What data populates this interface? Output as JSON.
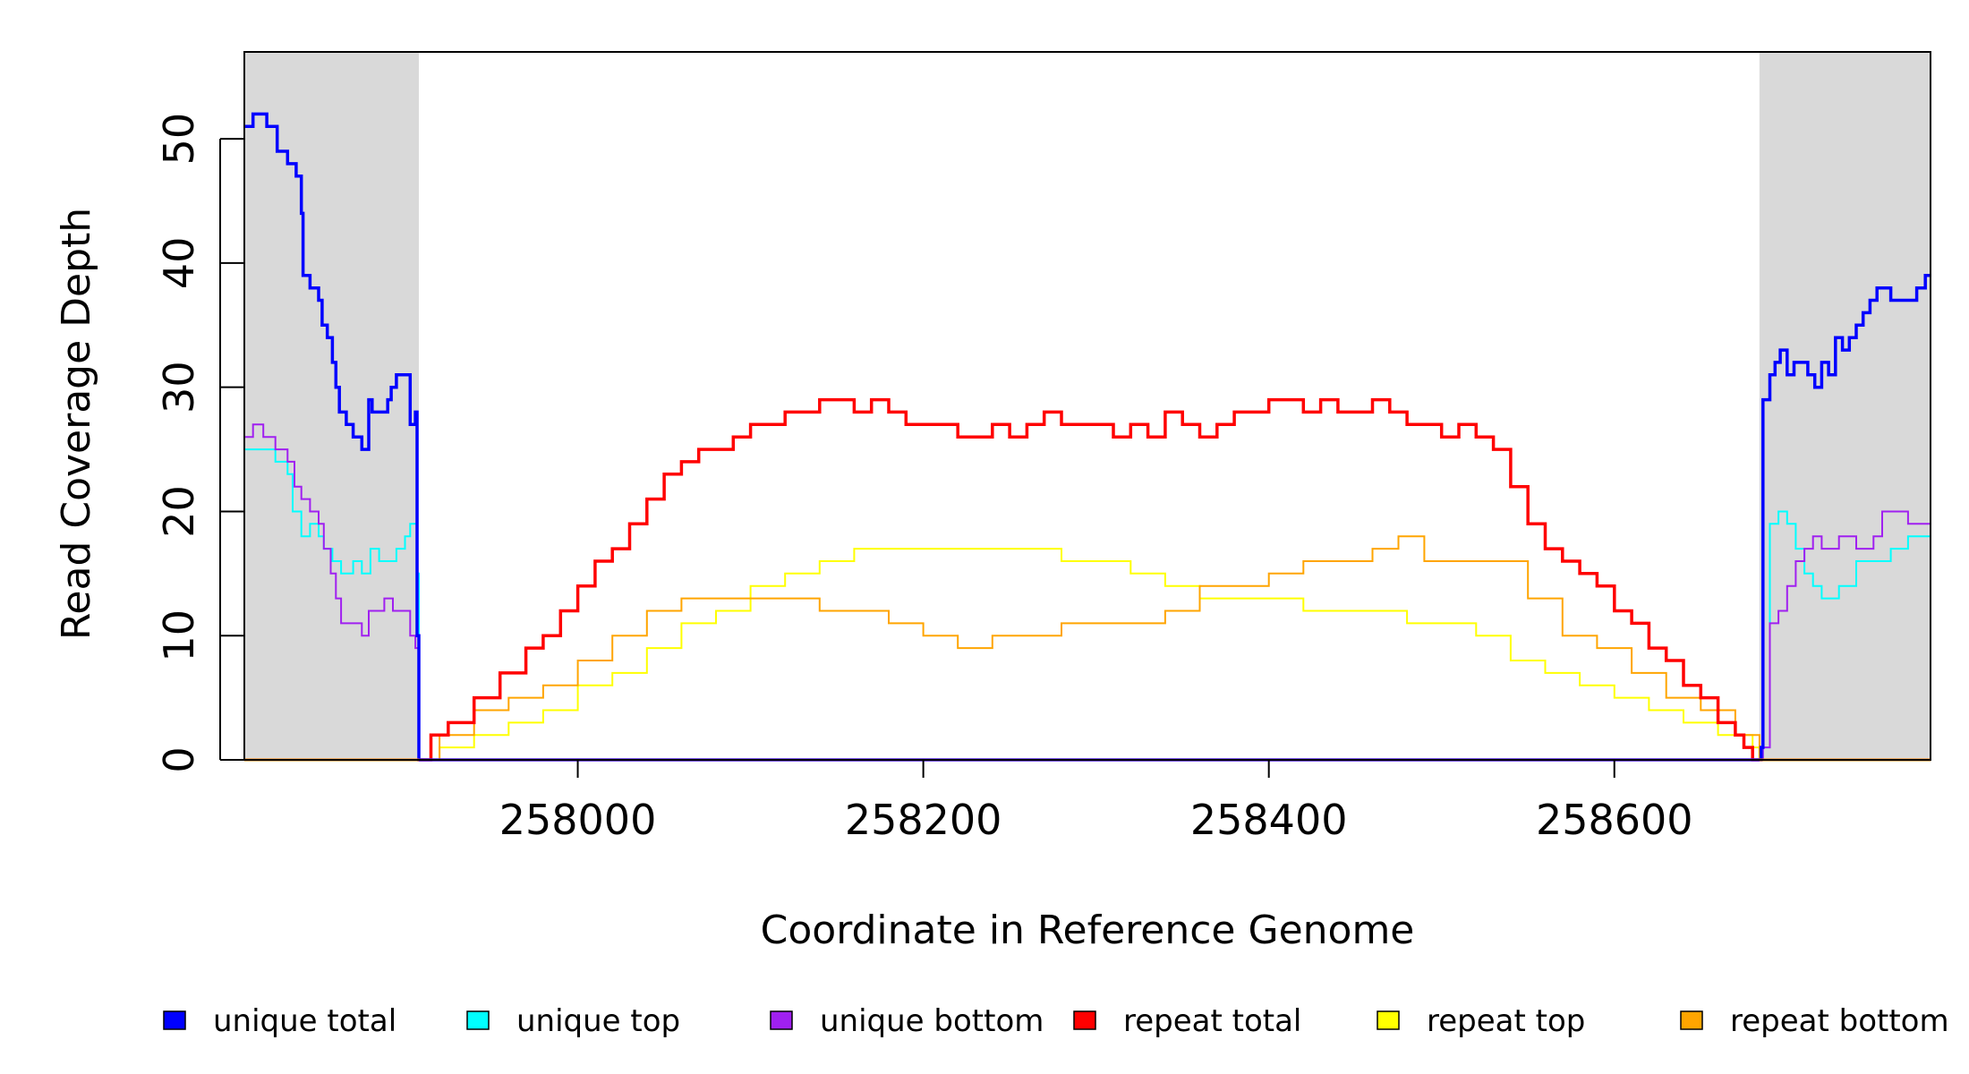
{
  "chart_data": {
    "type": "line",
    "title": "",
    "xlabel": "Coordinate in Reference Genome",
    "ylabel": "Read Coverage Depth",
    "xlim": [
      257807,
      258783
    ],
    "ylim": [
      0,
      57
    ],
    "x_ticks": [
      258000,
      258200,
      258400,
      258600
    ],
    "y_ticks": [
      0,
      10,
      20,
      30,
      40,
      50
    ],
    "shaded_regions": [
      {
        "from": 257807,
        "to": 257908,
        "color": "#d9d9d9"
      },
      {
        "from": 258684,
        "to": 258783,
        "color": "#d9d9d9"
      }
    ],
    "grid": false,
    "legend_position": "bottom",
    "series": [
      {
        "name": "unique total",
        "color": "#0000ff",
        "x": [
          257807,
          257812,
          257820,
          257826,
          257832,
          257837,
          257840,
          257841,
          257845,
          257848,
          257850,
          257852,
          257855,
          257858,
          257860,
          257862,
          257866,
          257870,
          257875,
          257879,
          257881,
          257885,
          257890,
          257892,
          257895,
          257900,
          257903,
          257906,
          257907,
          257908,
          257909,
          258684,
          258685,
          258686,
          258690,
          258693,
          258696,
          258700,
          258704,
          258708,
          258712,
          258716,
          258720,
          258724,
          258728,
          258732,
          258736,
          258740,
          258744,
          258748,
          258752,
          258756,
          258760,
          258765,
          258770,
          258775,
          258780,
          258783
        ],
        "values": [
          51,
          52,
          51,
          49,
          48,
          47,
          44,
          39,
          38,
          38,
          37,
          35,
          34,
          32,
          30,
          28,
          27,
          26,
          25,
          29,
          28,
          28,
          29,
          30,
          31,
          31,
          27,
          28,
          10,
          0,
          0,
          0,
          1,
          29,
          31,
          32,
          33,
          31,
          32,
          32,
          31,
          30,
          32,
          31,
          34,
          33,
          34,
          35,
          36,
          37,
          38,
          38,
          37,
          37,
          37,
          38,
          39,
          39
        ]
      },
      {
        "name": "unique top",
        "color": "#00ffff",
        "x": [
          257807,
          257815,
          257825,
          257832,
          257835,
          257840,
          257845,
          257850,
          257853,
          257858,
          257863,
          257866,
          257870,
          257875,
          257880,
          257885,
          257890,
          257895,
          257900,
          257903,
          257906,
          257907,
          257908,
          258684,
          258686,
          258690,
          258695,
          258700,
          258705,
          258710,
          258715,
          258720,
          258730,
          258740,
          258750,
          258760,
          258770,
          258783
        ],
        "values": [
          25,
          25,
          24,
          23,
          20,
          18,
          19,
          18,
          17,
          16,
          15,
          15,
          16,
          15,
          17,
          16,
          16,
          17,
          18,
          19,
          19,
          15,
          0,
          0,
          1,
          19,
          20,
          19,
          17,
          15,
          14,
          13,
          14,
          16,
          16,
          17,
          18,
          19
        ]
      },
      {
        "name": "unique bottom",
        "color": "#a020f0",
        "x": [
          257807,
          257812,
          257818,
          257825,
          257832,
          257836,
          257840,
          257845,
          257850,
          257853,
          257857,
          257860,
          257863,
          257866,
          257870,
          257875,
          257879,
          257882,
          257888,
          257893,
          257898,
          257903,
          257906,
          257907,
          257908,
          258684,
          258686,
          258690,
          258695,
          258700,
          258705,
          258710,
          258715,
          258720,
          258730,
          258740,
          258750,
          258755,
          258760,
          258770,
          258783
        ],
        "values": [
          26,
          27,
          26,
          25,
          24,
          22,
          21,
          20,
          19,
          17,
          15,
          13,
          11,
          11,
          11,
          10,
          12,
          12,
          13,
          12,
          12,
          10,
          9,
          9,
          0,
          0,
          1,
          11,
          12,
          14,
          16,
          17,
          18,
          17,
          18,
          17,
          18,
          20,
          20,
          19,
          20
        ]
      },
      {
        "name": "repeat total",
        "color": "#ff0000",
        "x": [
          257908,
          257915,
          257925,
          257940,
          257955,
          257970,
          257980,
          257990,
          258000,
          258010,
          258020,
          258030,
          258040,
          258050,
          258060,
          258070,
          258080,
          258090,
          258100,
          258110,
          258120,
          258130,
          258140,
          258150,
          258160,
          258170,
          258180,
          258190,
          258200,
          258210,
          258220,
          258230,
          258240,
          258250,
          258260,
          258270,
          258280,
          258290,
          258300,
          258310,
          258320,
          258330,
          258340,
          258350,
          258360,
          258370,
          258380,
          258390,
          258400,
          258410,
          258420,
          258430,
          258440,
          258450,
          258460,
          258470,
          258480,
          258490,
          258500,
          258510,
          258520,
          258530,
          258540,
          258550,
          258560,
          258570,
          258580,
          258590,
          258600,
          258610,
          258620,
          258630,
          258640,
          258650,
          258660,
          258670,
          258675,
          258680,
          258684
        ],
        "values": [
          0,
          2,
          3,
          5,
          7,
          9,
          10,
          12,
          14,
          16,
          17,
          19,
          21,
          23,
          24,
          25,
          25,
          26,
          27,
          27,
          28,
          28,
          29,
          29,
          28,
          29,
          28,
          27,
          27,
          27,
          26,
          26,
          27,
          26,
          27,
          28,
          27,
          27,
          27,
          26,
          27,
          26,
          28,
          27,
          26,
          27,
          28,
          28,
          29,
          29,
          28,
          29,
          28,
          28,
          29,
          28,
          27,
          27,
          26,
          27,
          26,
          25,
          22,
          19,
          17,
          16,
          15,
          14,
          12,
          11,
          9,
          8,
          6,
          5,
          3,
          2,
          1,
          0,
          0
        ]
      },
      {
        "name": "repeat top",
        "color": "#ffff00",
        "x": [
          257908,
          257920,
          257940,
          257960,
          257980,
          258000,
          258020,
          258040,
          258060,
          258080,
          258100,
          258120,
          258140,
          258160,
          258180,
          258200,
          258220,
          258240,
          258260,
          258280,
          258300,
          258320,
          258340,
          258360,
          258380,
          258400,
          258420,
          258440,
          258460,
          258480,
          258500,
          258520,
          258540,
          258560,
          258580,
          258600,
          258620,
          258640,
          258660,
          258680,
          258684
        ],
        "values": [
          0,
          1,
          2,
          3,
          4,
          6,
          7,
          9,
          11,
          12,
          14,
          15,
          16,
          17,
          17,
          17,
          17,
          17,
          17,
          16,
          16,
          15,
          14,
          13,
          13,
          13,
          12,
          12,
          12,
          11,
          11,
          10,
          8,
          7,
          6,
          5,
          4,
          3,
          2,
          1,
          0
        ]
      },
      {
        "name": "repeat bottom",
        "color": "#ffa500",
        "x": [
          257908,
          257920,
          257940,
          257960,
          257980,
          258000,
          258020,
          258040,
          258060,
          258080,
          258100,
          258120,
          258140,
          258160,
          258180,
          258200,
          258220,
          258240,
          258260,
          258280,
          258300,
          258320,
          258340,
          258360,
          258380,
          258400,
          258420,
          258440,
          258460,
          258475,
          258490,
          258510,
          258530,
          258550,
          258570,
          258590,
          258610,
          258630,
          258650,
          258670,
          258684
        ],
        "values": [
          0,
          2,
          4,
          5,
          6,
          8,
          10,
          12,
          13,
          13,
          13,
          13,
          12,
          12,
          11,
          10,
          9,
          10,
          10,
          11,
          11,
          11,
          12,
          14,
          14,
          15,
          16,
          16,
          17,
          18,
          16,
          16,
          16,
          13,
          10,
          9,
          7,
          5,
          4,
          2,
          0
        ]
      }
    ]
  }
}
